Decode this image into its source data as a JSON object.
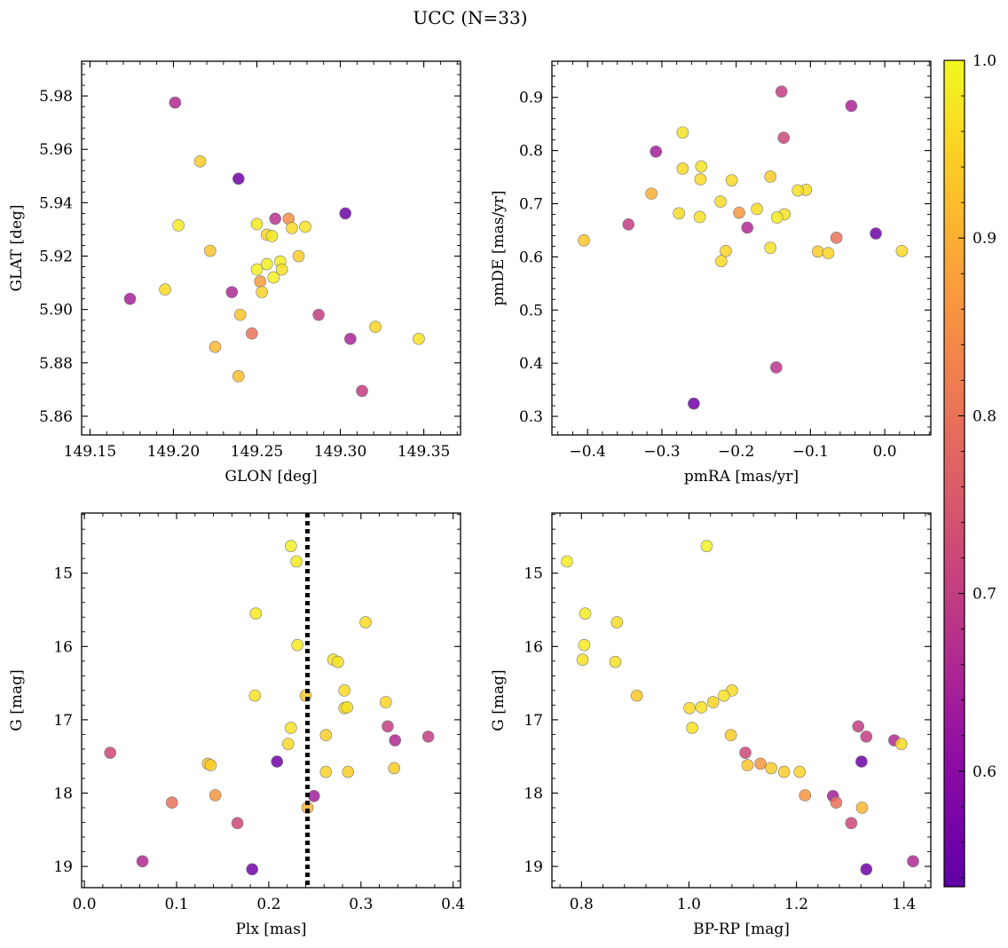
{
  "figure": {
    "title": "UCC (N=33)"
  },
  "colorbar": {
    "min": 0.535,
    "max": 1.0,
    "ticks": [
      0.6,
      0.7,
      0.8,
      0.9,
      1.0
    ],
    "tick_labels": [
      "0.6",
      "0.7",
      "0.8",
      "0.9",
      "1.0"
    ],
    "colormap": "plasma"
  },
  "chart_data": [
    {
      "type": "scatter",
      "xlabel": "GLON [deg]",
      "ylabel": "GLAT [deg]",
      "xlim": [
        149.145,
        149.372
      ],
      "ylim": [
        5.853,
        5.993
      ],
      "xticks": [
        149.15,
        149.2,
        149.25,
        149.3,
        149.35
      ],
      "xtick_labels": [
        "149.15",
        "149.20",
        "149.25",
        "149.30",
        "149.35"
      ],
      "yticks": [
        5.86,
        5.88,
        5.9,
        5.92,
        5.94,
        5.96,
        5.98
      ],
      "ytick_labels": [
        "5.86",
        "5.88",
        "5.90",
        "5.92",
        "5.94",
        "5.96",
        "5.98"
      ],
      "points": [
        {
          "x": 149.201,
          "y": 5.9775,
          "c": 0.66
        },
        {
          "x": 149.239,
          "y": 5.949,
          "c": 0.56
        },
        {
          "x": 149.303,
          "y": 5.936,
          "c": 0.56
        },
        {
          "x": 149.216,
          "y": 5.9555,
          "c": 0.94
        },
        {
          "x": 149.261,
          "y": 5.934,
          "c": 0.68
        },
        {
          "x": 149.269,
          "y": 5.934,
          "c": 0.85
        },
        {
          "x": 149.25,
          "y": 5.932,
          "c": 0.98
        },
        {
          "x": 149.203,
          "y": 5.9315,
          "c": 0.98
        },
        {
          "x": 149.271,
          "y": 5.9305,
          "c": 0.96
        },
        {
          "x": 149.279,
          "y": 5.931,
          "c": 0.97
        },
        {
          "x": 149.256,
          "y": 5.928,
          "c": 0.95
        },
        {
          "x": 149.259,
          "y": 5.9275,
          "c": 0.98
        },
        {
          "x": 149.222,
          "y": 5.922,
          "c": 0.93
        },
        {
          "x": 149.275,
          "y": 5.92,
          "c": 0.94
        },
        {
          "x": 149.264,
          "y": 5.918,
          "c": 0.98
        },
        {
          "x": 149.256,
          "y": 5.917,
          "c": 0.99
        },
        {
          "x": 149.25,
          "y": 5.915,
          "c": 0.99
        },
        {
          "x": 149.265,
          "y": 5.915,
          "c": 0.97
        },
        {
          "x": 149.26,
          "y": 5.912,
          "c": 0.99
        },
        {
          "x": 149.252,
          "y": 5.9105,
          "c": 0.87
        },
        {
          "x": 149.195,
          "y": 5.9075,
          "c": 0.96
        },
        {
          "x": 149.235,
          "y": 5.9065,
          "c": 0.66
        },
        {
          "x": 149.253,
          "y": 5.9065,
          "c": 0.95
        },
        {
          "x": 149.174,
          "y": 5.904,
          "c": 0.64
        },
        {
          "x": 149.24,
          "y": 5.898,
          "c": 0.93
        },
        {
          "x": 149.287,
          "y": 5.898,
          "c": 0.7
        },
        {
          "x": 149.321,
          "y": 5.8935,
          "c": 0.95
        },
        {
          "x": 149.247,
          "y": 5.891,
          "c": 0.8
        },
        {
          "x": 149.306,
          "y": 5.889,
          "c": 0.65
        },
        {
          "x": 149.347,
          "y": 5.889,
          "c": 0.97
        },
        {
          "x": 149.225,
          "y": 5.886,
          "c": 0.91
        },
        {
          "x": 149.239,
          "y": 5.875,
          "c": 0.92
        },
        {
          "x": 149.313,
          "y": 5.8695,
          "c": 0.7
        }
      ]
    },
    {
      "type": "scatter",
      "xlabel": "pmRA [mas/yr]",
      "ylabel": "pmDE [mas/yr]",
      "xlim": [
        -0.448,
        0.062
      ],
      "ylim": [
        0.265,
        0.968
      ],
      "xticks": [
        -0.4,
        -0.3,
        -0.2,
        -0.1,
        0.0
      ],
      "xtick_labels": [
        "−0.4",
        "−0.3",
        "−0.2",
        "−0.1",
        "0.0"
      ],
      "yticks": [
        0.3,
        0.4,
        0.5,
        0.6,
        0.7,
        0.8,
        0.9
      ],
      "ytick_labels": [
        "0.3",
        "0.4",
        "0.5",
        "0.6",
        "0.7",
        "0.8",
        "0.9"
      ],
      "points": [
        {
          "x": -0.139,
          "y": 0.911,
          "c": 0.7
        },
        {
          "x": -0.045,
          "y": 0.884,
          "c": 0.65
        },
        {
          "x": -0.272,
          "y": 0.834,
          "c": 0.97
        },
        {
          "x": -0.136,
          "y": 0.824,
          "c": 0.72
        },
        {
          "x": -0.308,
          "y": 0.798,
          "c": 0.64
        },
        {
          "x": -0.247,
          "y": 0.77,
          "c": 0.97
        },
        {
          "x": -0.272,
          "y": 0.766,
          "c": 0.96
        },
        {
          "x": -0.154,
          "y": 0.751,
          "c": 0.94
        },
        {
          "x": -0.248,
          "y": 0.746,
          "c": 0.96
        },
        {
          "x": -0.206,
          "y": 0.744,
          "c": 0.96
        },
        {
          "x": -0.106,
          "y": 0.726,
          "c": 0.96
        },
        {
          "x": -0.117,
          "y": 0.725,
          "c": 0.97
        },
        {
          "x": -0.314,
          "y": 0.719,
          "c": 0.9
        },
        {
          "x": -0.221,
          "y": 0.704,
          "c": 0.96
        },
        {
          "x": -0.172,
          "y": 0.69,
          "c": 0.96
        },
        {
          "x": -0.196,
          "y": 0.683,
          "c": 0.86
        },
        {
          "x": -0.277,
          "y": 0.682,
          "c": 0.96
        },
        {
          "x": -0.135,
          "y": 0.68,
          "c": 0.97
        },
        {
          "x": -0.249,
          "y": 0.675,
          "c": 0.97
        },
        {
          "x": -0.145,
          "y": 0.674,
          "c": 0.98
        },
        {
          "x": -0.345,
          "y": 0.661,
          "c": 0.7
        },
        {
          "x": -0.185,
          "y": 0.655,
          "c": 0.66
        },
        {
          "x": -0.012,
          "y": 0.644,
          "c": 0.56
        },
        {
          "x": -0.065,
          "y": 0.636,
          "c": 0.8
        },
        {
          "x": -0.405,
          "y": 0.631,
          "c": 0.93
        },
        {
          "x": -0.154,
          "y": 0.617,
          "c": 0.97
        },
        {
          "x": -0.214,
          "y": 0.611,
          "c": 0.95
        },
        {
          "x": -0.09,
          "y": 0.61,
          "c": 0.94
        },
        {
          "x": 0.023,
          "y": 0.611,
          "c": 0.96
        },
        {
          "x": -0.076,
          "y": 0.607,
          "c": 0.95
        },
        {
          "x": -0.22,
          "y": 0.592,
          "c": 0.96
        },
        {
          "x": -0.146,
          "y": 0.392,
          "c": 0.68
        },
        {
          "x": -0.257,
          "y": 0.324,
          "c": 0.56
        }
      ]
    },
    {
      "type": "scatter",
      "xlabel": "Plx [mas]",
      "ylabel": "G [mag]",
      "xlim": [
        -0.003,
        0.408
      ],
      "ylim": [
        19.29,
        14.18
      ],
      "y_inverted": true,
      "vline": {
        "x": 0.242,
        "style": "dotted"
      },
      "xticks": [
        0.0,
        0.1,
        0.2,
        0.3,
        0.4
      ],
      "xtick_labels": [
        "0.0",
        "0.1",
        "0.2",
        "0.3",
        "0.4"
      ],
      "yticks": [
        15,
        16,
        17,
        18,
        19
      ],
      "ytick_labels": [
        "15",
        "16",
        "17",
        "18",
        "19"
      ],
      "points": [
        {
          "x": 0.224,
          "y": 14.63,
          "c": 0.99
        },
        {
          "x": 0.23,
          "y": 14.84,
          "c": 0.98
        },
        {
          "x": 0.186,
          "y": 15.55,
          "c": 0.98
        },
        {
          "x": 0.305,
          "y": 15.67,
          "c": 0.96
        },
        {
          "x": 0.231,
          "y": 15.98,
          "c": 0.98
        },
        {
          "x": 0.27,
          "y": 16.18,
          "c": 0.97
        },
        {
          "x": 0.275,
          "y": 16.21,
          "c": 0.97
        },
        {
          "x": 0.282,
          "y": 16.6,
          "c": 0.96
        },
        {
          "x": 0.185,
          "y": 16.67,
          "c": 0.97
        },
        {
          "x": 0.24,
          "y": 16.67,
          "c": 0.93
        },
        {
          "x": 0.327,
          "y": 16.76,
          "c": 0.95
        },
        {
          "x": 0.282,
          "y": 16.84,
          "c": 0.96
        },
        {
          "x": 0.285,
          "y": 16.83,
          "c": 0.97
        },
        {
          "x": 0.329,
          "y": 17.09,
          "c": 0.7
        },
        {
          "x": 0.224,
          "y": 17.11,
          "c": 0.97
        },
        {
          "x": 0.262,
          "y": 17.21,
          "c": 0.94
        },
        {
          "x": 0.373,
          "y": 17.23,
          "c": 0.7
        },
        {
          "x": 0.337,
          "y": 17.28,
          "c": 0.66
        },
        {
          "x": 0.221,
          "y": 17.33,
          "c": 0.96
        },
        {
          "x": 0.028,
          "y": 17.45,
          "c": 0.72
        },
        {
          "x": 0.209,
          "y": 17.57,
          "c": 0.56
        },
        {
          "x": 0.134,
          "y": 17.6,
          "c": 0.93
        },
        {
          "x": 0.137,
          "y": 17.62,
          "c": 0.94
        },
        {
          "x": 0.336,
          "y": 17.66,
          "c": 0.94
        },
        {
          "x": 0.262,
          "y": 17.71,
          "c": 0.95
        },
        {
          "x": 0.286,
          "y": 17.71,
          "c": 0.94
        },
        {
          "x": 0.142,
          "y": 18.03,
          "c": 0.86
        },
        {
          "x": 0.249,
          "y": 18.04,
          "c": 0.64
        },
        {
          "x": 0.095,
          "y": 18.13,
          "c": 0.8
        },
        {
          "x": 0.242,
          "y": 18.2,
          "c": 0.91
        },
        {
          "x": 0.166,
          "y": 18.41,
          "c": 0.72
        },
        {
          "x": 0.063,
          "y": 18.93,
          "c": 0.66
        },
        {
          "x": 0.182,
          "y": 19.04,
          "c": 0.56
        }
      ]
    },
    {
      "type": "scatter",
      "xlabel": "BP-RP [mag]",
      "ylabel": "G [mag]",
      "xlim": [
        0.745,
        1.45
      ],
      "ylim": [
        19.29,
        14.18
      ],
      "y_inverted": true,
      "xticks": [
        0.8,
        1.0,
        1.2,
        1.4
      ],
      "xtick_labels": [
        "0.8",
        "1.0",
        "1.2",
        "1.4"
      ],
      "yticks": [
        15,
        16,
        17,
        18,
        19
      ],
      "ytick_labels": [
        "15",
        "16",
        "17",
        "18",
        "19"
      ],
      "points": [
        {
          "x": 1.033,
          "y": 14.63,
          "c": 0.99
        },
        {
          "x": 0.773,
          "y": 14.84,
          "c": 0.98
        },
        {
          "x": 0.807,
          "y": 15.55,
          "c": 0.98
        },
        {
          "x": 0.866,
          "y": 15.67,
          "c": 0.96
        },
        {
          "x": 0.805,
          "y": 15.98,
          "c": 0.98
        },
        {
          "x": 0.802,
          "y": 16.18,
          "c": 0.97
        },
        {
          "x": 0.863,
          "y": 16.21,
          "c": 0.97
        },
        {
          "x": 1.08,
          "y": 16.6,
          "c": 0.96
        },
        {
          "x": 0.903,
          "y": 16.67,
          "c": 0.93
        },
        {
          "x": 1.065,
          "y": 16.67,
          "c": 0.97
        },
        {
          "x": 1.045,
          "y": 16.76,
          "c": 0.95
        },
        {
          "x": 1.001,
          "y": 16.84,
          "c": 0.96
        },
        {
          "x": 1.023,
          "y": 16.83,
          "c": 0.97
        },
        {
          "x": 1.315,
          "y": 17.09,
          "c": 0.7
        },
        {
          "x": 1.006,
          "y": 17.11,
          "c": 0.97
        },
        {
          "x": 1.078,
          "y": 17.21,
          "c": 0.94
        },
        {
          "x": 1.33,
          "y": 17.23,
          "c": 0.7
        },
        {
          "x": 1.382,
          "y": 17.28,
          "c": 0.66
        },
        {
          "x": 1.395,
          "y": 17.33,
          "c": 0.96
        },
        {
          "x": 1.105,
          "y": 17.45,
          "c": 0.72
        },
        {
          "x": 1.321,
          "y": 17.57,
          "c": 0.56
        },
        {
          "x": 1.133,
          "y": 17.6,
          "c": 0.86
        },
        {
          "x": 1.109,
          "y": 17.62,
          "c": 0.93
        },
        {
          "x": 1.153,
          "y": 17.66,
          "c": 0.94
        },
        {
          "x": 1.177,
          "y": 17.71,
          "c": 0.94
        },
        {
          "x": 1.206,
          "y": 17.71,
          "c": 0.95
        },
        {
          "x": 1.216,
          "y": 18.03,
          "c": 0.86
        },
        {
          "x": 1.268,
          "y": 18.04,
          "c": 0.64
        },
        {
          "x": 1.274,
          "y": 18.13,
          "c": 0.8
        },
        {
          "x": 1.322,
          "y": 18.2,
          "c": 0.91
        },
        {
          "x": 1.302,
          "y": 18.41,
          "c": 0.72
        },
        {
          "x": 1.417,
          "y": 18.93,
          "c": 0.66
        },
        {
          "x": 1.33,
          "y": 19.04,
          "c": 0.56
        }
      ]
    }
  ]
}
